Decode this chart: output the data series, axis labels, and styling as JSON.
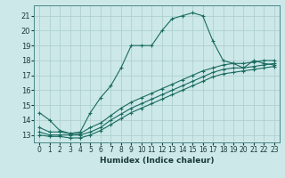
{
  "xlabel": "Humidex (Indice chaleur)",
  "ylabel": "",
  "bg_color": "#cce8e8",
  "grid_color": "#aacccc",
  "line_color": "#1a6b60",
  "xlim": [
    -0.5,
    23.5
  ],
  "ylim": [
    12.5,
    21.7
  ],
  "yticks": [
    13,
    14,
    15,
    16,
    17,
    18,
    19,
    20,
    21
  ],
  "xticks": [
    0,
    1,
    2,
    3,
    4,
    5,
    6,
    7,
    8,
    9,
    10,
    11,
    12,
    13,
    14,
    15,
    16,
    17,
    18,
    19,
    20,
    21,
    22,
    23
  ],
  "line1_y": [
    14.5,
    14.0,
    13.3,
    13.1,
    13.2,
    14.5,
    15.5,
    16.3,
    17.5,
    19.0,
    19.0,
    19.0,
    20.0,
    20.8,
    21.0,
    21.2,
    21.0,
    19.3,
    18.0,
    17.8,
    17.5,
    18.0,
    17.8,
    17.7
  ],
  "line2_y": [
    13.5,
    13.2,
    13.2,
    13.1,
    13.1,
    13.5,
    13.8,
    14.3,
    14.8,
    15.2,
    15.5,
    15.8,
    16.1,
    16.4,
    16.7,
    17.0,
    17.3,
    17.5,
    17.7,
    17.8,
    17.8,
    17.9,
    18.0,
    18.0
  ],
  "line3_y": [
    13.2,
    13.0,
    13.0,
    13.0,
    13.0,
    13.2,
    13.5,
    14.0,
    14.4,
    14.8,
    15.1,
    15.4,
    15.7,
    16.0,
    16.3,
    16.6,
    16.9,
    17.2,
    17.4,
    17.5,
    17.5,
    17.6,
    17.7,
    17.8
  ],
  "line4_y": [
    13.0,
    12.9,
    12.9,
    12.8,
    12.8,
    13.0,
    13.3,
    13.7,
    14.1,
    14.5,
    14.8,
    15.1,
    15.4,
    15.7,
    16.0,
    16.3,
    16.6,
    16.9,
    17.1,
    17.2,
    17.3,
    17.4,
    17.5,
    17.6
  ]
}
